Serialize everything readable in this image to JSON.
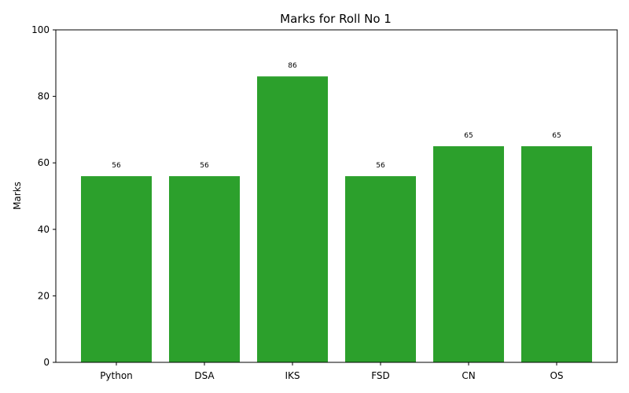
{
  "chart_data": {
    "type": "bar",
    "title": "Marks for Roll No 1",
    "xlabel": "",
    "ylabel": "Marks",
    "categories": [
      "Python",
      "DSA",
      "IKS",
      "FSD",
      "CN",
      "OS"
    ],
    "values": [
      56,
      56,
      86,
      56,
      65,
      65
    ],
    "ylim": [
      0,
      100
    ],
    "yticks": [
      0,
      20,
      40,
      60,
      80,
      100
    ],
    "bar_color": "#2ca02c",
    "grid": false,
    "legend": "none",
    "data_labels": true
  }
}
